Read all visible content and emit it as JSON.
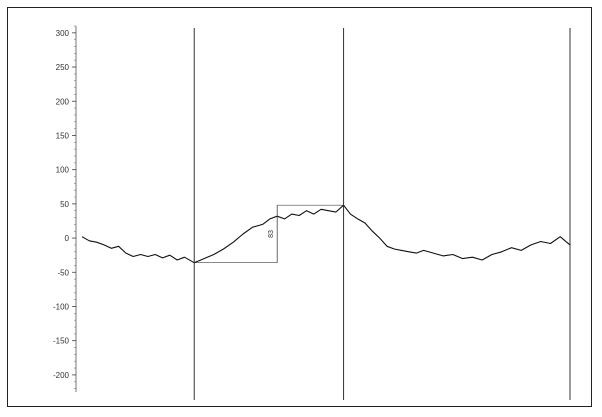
{
  "chart_data": {
    "type": "line",
    "title": "",
    "xlabel": "",
    "ylabel": "",
    "ylim": [
      -225,
      310
    ],
    "y_ticks": [
      300,
      250,
      200,
      150,
      100,
      50,
      0,
      -50,
      -100,
      -150,
      -200
    ],
    "y_tick_labels": [
      "300",
      "250",
      "200",
      "150",
      "100",
      "50",
      "0",
      "-50",
      "-100",
      "-150",
      "-200"
    ],
    "xlim": [
      0,
      100
    ],
    "grid": false,
    "vertical_markers": [
      23.0,
      53.6,
      100.0
    ],
    "series": [
      {
        "x": [
          0,
          1.5,
          3,
          4.5,
          6,
          7.5,
          9,
          10.5,
          12,
          13.5,
          15,
          16.5,
          18,
          19.5,
          21,
          23,
          25,
          27,
          29,
          31,
          33,
          35,
          37,
          38.5,
          40,
          41.5,
          43,
          44.5,
          46,
          47.5,
          49,
          50.5,
          52,
          53.6,
          55,
          56.5,
          58,
          59.5,
          61,
          62.5,
          64,
          65.5,
          67,
          68.5,
          70,
          72,
          74,
          76,
          78,
          80,
          82,
          84,
          86,
          88,
          90,
          92,
          94,
          96,
          98,
          100
        ],
        "values": [
          2,
          -4,
          -6,
          -10,
          -15,
          -12,
          -22,
          -27,
          -24,
          -27,
          -24,
          -29,
          -25,
          -32,
          -28,
          -36,
          -30,
          -24,
          -16,
          -6,
          6,
          16,
          20,
          28,
          32,
          28,
          35,
          33,
          40,
          35,
          42,
          40,
          38,
          48,
          35,
          28,
          22,
          10,
          0,
          -12,
          -16,
          -18,
          -20,
          -22,
          -18,
          -22,
          -26,
          -24,
          -30,
          -28,
          -32,
          -24,
          -20,
          -14,
          -18,
          -10,
          -5,
          -8,
          2,
          -10
        ]
      }
    ],
    "annotation": {
      "label": "83",
      "from_value": -36,
      "to_value": 48,
      "x_position": 40
    }
  }
}
